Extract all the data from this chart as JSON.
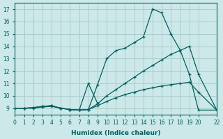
{
  "xlabel": "Humidex (Indice chaleur)",
  "bg_color": "#cce8e8",
  "grid_color": "#aacccc",
  "line_color": "#006060",
  "xlim": [
    0,
    22
  ],
  "ylim": [
    8.5,
    17.5
  ],
  "xticks": [
    0,
    1,
    2,
    3,
    4,
    5,
    6,
    7,
    8,
    9,
    10,
    11,
    12,
    13,
    14,
    15,
    16,
    17,
    18,
    19,
    20,
    22
  ],
  "yticks": [
    9,
    10,
    11,
    12,
    13,
    14,
    15,
    16,
    17
  ],
  "lines": [
    {
      "x": [
        0,
        1,
        2,
        3,
        4,
        5,
        6,
        7,
        8,
        9,
        10,
        11,
        12,
        13,
        14,
        15,
        16,
        17,
        18,
        19,
        20,
        22
      ],
      "y": [
        9.0,
        9.0,
        9.0,
        9.1,
        9.15,
        9.0,
        8.9,
        8.85,
        8.9,
        10.9,
        13.0,
        13.65,
        13.85,
        14.3,
        14.75,
        17.0,
        16.7,
        15.0,
        13.7,
        11.75,
        8.85,
        8.85
      ]
    },
    {
      "x": [
        0,
        1,
        2,
        3,
        4,
        5,
        6,
        7,
        8,
        9,
        10,
        11,
        12,
        13,
        14,
        15,
        16,
        17,
        18,
        19,
        20,
        22
      ],
      "y": [
        9.0,
        9.0,
        9.05,
        9.15,
        9.2,
        9.0,
        8.9,
        8.85,
        8.9,
        9.35,
        10.0,
        10.5,
        11.0,
        11.5,
        12.0,
        12.45,
        12.9,
        13.35,
        13.65,
        14.0,
        11.75,
        8.85
      ]
    },
    {
      "x": [
        0,
        1,
        2,
        3,
        4,
        5,
        6,
        7,
        8,
        9,
        10,
        11,
        12,
        13,
        14,
        15,
        16,
        17,
        18,
        19,
        20,
        22
      ],
      "y": [
        9.0,
        9.0,
        9.05,
        9.15,
        9.2,
        9.0,
        8.9,
        8.85,
        8.9,
        9.2,
        9.55,
        9.85,
        10.1,
        10.3,
        10.5,
        10.65,
        10.8,
        10.9,
        11.0,
        11.1,
        10.3,
        8.85
      ]
    },
    {
      "x": [
        3,
        4,
        5,
        6,
        7,
        8,
        9
      ],
      "y": [
        9.15,
        9.2,
        9.0,
        8.9,
        8.85,
        11.0,
        9.4
      ]
    }
  ]
}
